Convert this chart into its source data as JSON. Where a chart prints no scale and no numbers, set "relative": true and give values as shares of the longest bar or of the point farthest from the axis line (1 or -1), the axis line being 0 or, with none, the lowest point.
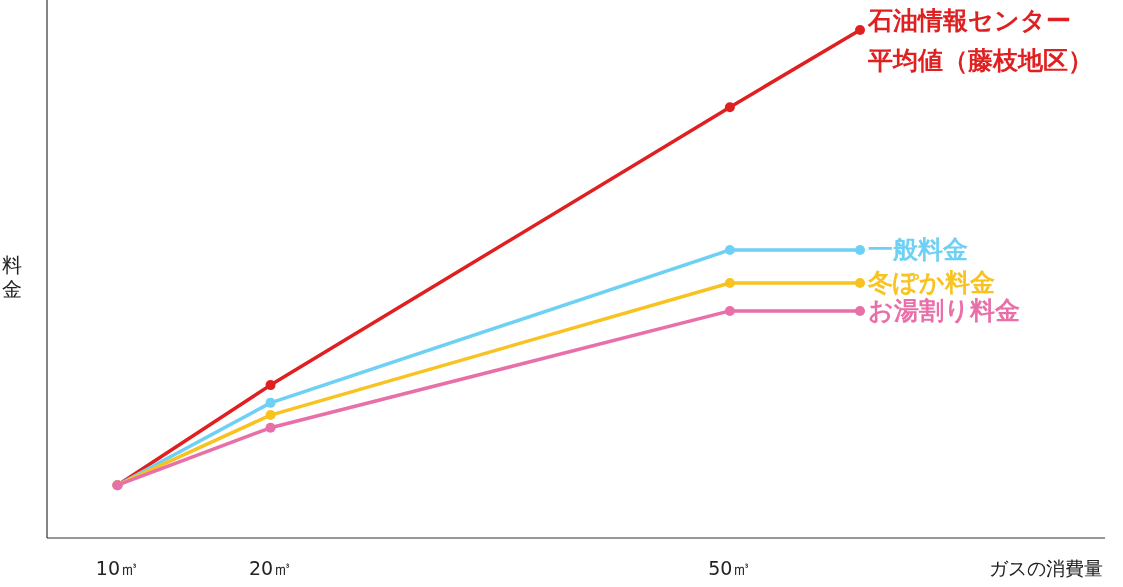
{
  "chart_data": {
    "type": "line",
    "relative": true,
    "xlabel": "ガスの消費量",
    "ylabel": "料金",
    "x": [
      10,
      20,
      50,
      58.5
    ],
    "xlim": [
      5.4,
      74.5
    ],
    "xticks": [
      {
        "value": 10,
        "label": "10㎥"
      },
      {
        "value": 20,
        "label": "20㎥"
      },
      {
        "value": 50,
        "label": "50㎥"
      }
    ],
    "marker": "circle",
    "line_style": "solid",
    "series": [
      {
        "name": "石油情報センター平均値（藤枝地区）",
        "color": "#e02020",
        "values": [
          0.104,
          0.301,
          0.848,
          1
        ]
      },
      {
        "name": "一般料金",
        "color": "#6fd0f5",
        "values": [
          0.104,
          0.266,
          0.567,
          0.567
        ]
      },
      {
        "name": "冬ぽか料金",
        "color": "#f8c320",
        "values": [
          0.104,
          0.242,
          0.502,
          0.502
        ]
      },
      {
        "name": "お湯割り料金",
        "color": "#e86fa8",
        "values": [
          0.104,
          0.217,
          0.447,
          0.447
        ]
      }
    ]
  }
}
